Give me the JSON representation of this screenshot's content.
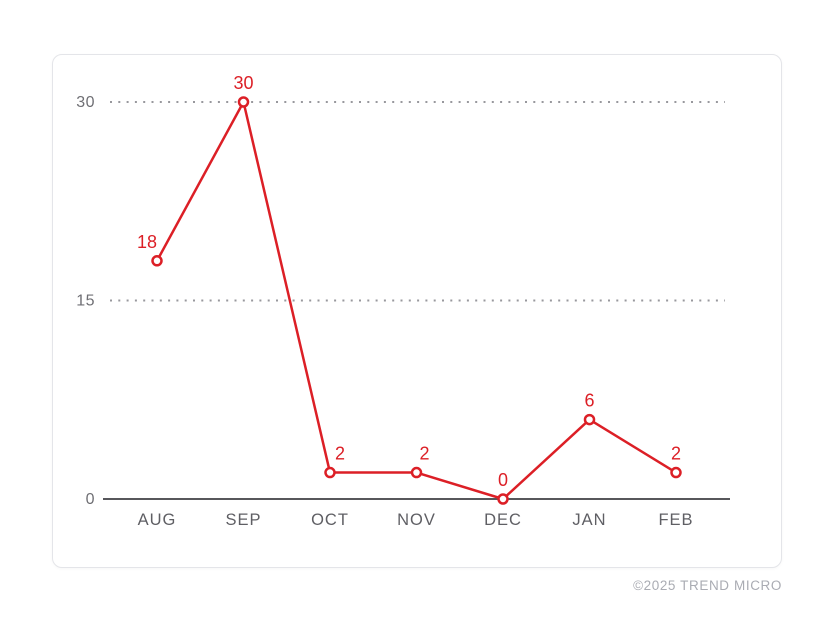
{
  "chart_data": {
    "type": "line",
    "title": "",
    "xlabel": "",
    "ylabel": "",
    "categories": [
      "AUG",
      "SEP",
      "OCT",
      "NOV",
      "DEC",
      "JAN",
      "FEB"
    ],
    "values": [
      18,
      30,
      2,
      2,
      0,
      6,
      2
    ],
    "point_labels": [
      "18",
      "30",
      "2",
      "2",
      "0",
      "6",
      "2"
    ],
    "yticks": [
      0,
      15,
      30
    ],
    "ylim": [
      0,
      30
    ],
    "grid": "horizontal dotted lines at 15 and 30, solid axis at 0",
    "legend": "none",
    "label_dx": [
      -10,
      0,
      10,
      8,
      0,
      0,
      0
    ],
    "colors": {
      "line": "#dc1f26",
      "marker_fill": "#ffffff",
      "axis": "#57575b",
      "gridline": "#98989d",
      "tick_label": "#6f6f74",
      "category_label": "#5f5f64",
      "point_label": "#dc1f26"
    }
  },
  "footer": {
    "copyright": "©2025 TREND MICRO"
  }
}
